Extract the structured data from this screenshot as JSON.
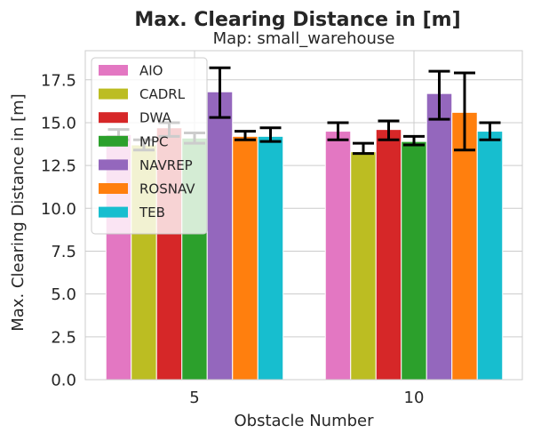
{
  "chart_data": {
    "type": "bar",
    "title": "Max. Clearing Distance in [m]",
    "subtitle": "Map: small_warehouse",
    "xlabel": "Obstacle Number",
    "ylabel": "Max. Clearing Distance in [m]",
    "categories": [
      "5",
      "10"
    ],
    "ylim": [
      0,
      19.2
    ],
    "yticks": [
      "0.0",
      "2.5",
      "5.0",
      "7.5",
      "10.0",
      "12.5",
      "15.0",
      "17.5"
    ],
    "grid": true,
    "legend_position": "top-left",
    "series": [
      {
        "name": "AIO",
        "color": "#e377c2",
        "values": [
          14.3,
          14.5
        ],
        "err_low": [
          14.0,
          14.0
        ],
        "err_high": [
          14.6,
          15.0
        ]
      },
      {
        "name": "CADRL",
        "color": "#bcbd22",
        "values": [
          13.7,
          13.3
        ],
        "err_low": [
          13.4,
          13.2
        ],
        "err_high": [
          14.0,
          13.8
        ]
      },
      {
        "name": "DWA",
        "color": "#d62728",
        "values": [
          14.7,
          14.6
        ],
        "err_low": [
          14.2,
          14.0
        ],
        "err_high": [
          15.0,
          15.1
        ]
      },
      {
        "name": "MPC",
        "color": "#2ca02c",
        "values": [
          14.1,
          13.9
        ],
        "err_low": [
          13.8,
          13.7
        ],
        "err_high": [
          14.4,
          14.2
        ]
      },
      {
        "name": "NAVREP",
        "color": "#9467bd",
        "values": [
          16.8,
          16.7
        ],
        "err_low": [
          15.3,
          15.2
        ],
        "err_high": [
          18.2,
          18.0
        ]
      },
      {
        "name": "ROSNAV",
        "color": "#ff7f0e",
        "values": [
          14.2,
          15.6
        ],
        "err_low": [
          14.0,
          13.4
        ],
        "err_high": [
          14.5,
          17.9
        ]
      },
      {
        "name": "TEB",
        "color": "#17becf",
        "values": [
          14.2,
          14.5
        ],
        "err_low": [
          13.9,
          14.0
        ],
        "err_high": [
          14.7,
          15.0
        ]
      }
    ]
  }
}
